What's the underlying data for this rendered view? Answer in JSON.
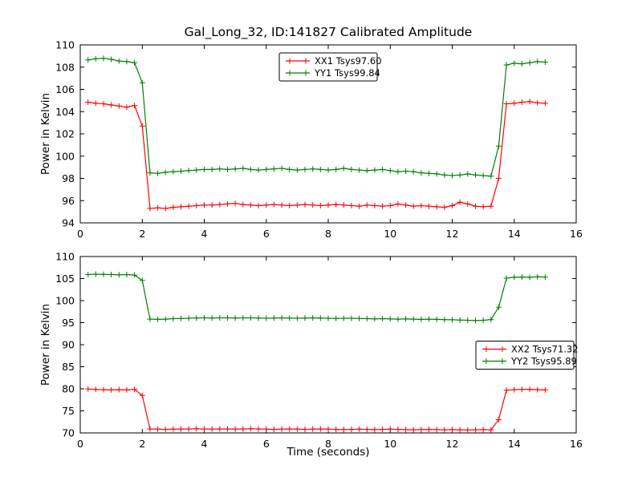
{
  "figure": {
    "title": "Gal_Long_32, ID:141827 Calibrated Amplitude",
    "background_color": "#ffffff",
    "axes_color": "#000000"
  },
  "chart_data": [
    {
      "type": "line",
      "ylabel": "Power in Kelvin",
      "xlabel": "",
      "xlim": [
        0,
        16
      ],
      "ylim": [
        94,
        110
      ],
      "xticks": [
        0,
        2,
        4,
        6,
        8,
        10,
        12,
        14,
        16
      ],
      "yticks": [
        94,
        96,
        98,
        100,
        102,
        104,
        106,
        108,
        110
      ],
      "grid": false,
      "legend_position": "top-center",
      "x": [
        0.25,
        0.5,
        0.75,
        1.0,
        1.25,
        1.5,
        1.75,
        2.0,
        2.25,
        2.5,
        2.75,
        3.0,
        3.25,
        3.5,
        3.75,
        4.0,
        4.25,
        4.5,
        4.75,
        5.0,
        5.25,
        5.5,
        5.75,
        6.0,
        6.25,
        6.5,
        6.75,
        7.0,
        7.25,
        7.5,
        7.75,
        8.0,
        8.25,
        8.5,
        8.75,
        9.0,
        9.25,
        9.5,
        9.75,
        10.0,
        10.25,
        10.5,
        10.75,
        11.0,
        11.25,
        11.5,
        11.75,
        12.0,
        12.25,
        12.5,
        12.75,
        13.0,
        13.25,
        13.5,
        13.75,
        14.0,
        14.25,
        14.5,
        14.75,
        15.0
      ],
      "series": [
        {
          "key": "XX1",
          "name": "XX1 Tsys97.60",
          "color": "#ff0000",
          "marker": "+",
          "values": [
            104.85,
            104.75,
            104.7,
            104.6,
            104.5,
            104.4,
            104.55,
            102.7,
            95.3,
            95.35,
            95.3,
            95.4,
            95.45,
            95.5,
            95.55,
            95.6,
            95.6,
            95.65,
            95.7,
            95.75,
            95.65,
            95.6,
            95.55,
            95.6,
            95.65,
            95.6,
            95.55,
            95.6,
            95.65,
            95.6,
            95.55,
            95.6,
            95.65,
            95.6,
            95.55,
            95.5,
            95.6,
            95.55,
            95.5,
            95.55,
            95.7,
            95.6,
            95.5,
            95.55,
            95.5,
            95.45,
            95.4,
            95.55,
            95.85,
            95.7,
            95.5,
            95.45,
            95.5,
            98.0,
            104.7,
            104.75,
            104.85,
            104.9,
            104.8,
            104.75
          ]
        },
        {
          "key": "YY1",
          "name": "YY1 Tsys99.84",
          "color": "#008000",
          "marker": "+",
          "values": [
            108.65,
            108.75,
            108.8,
            108.7,
            108.55,
            108.5,
            108.4,
            106.6,
            98.5,
            98.45,
            98.55,
            98.6,
            98.65,
            98.7,
            98.75,
            98.8,
            98.8,
            98.85,
            98.8,
            98.85,
            98.9,
            98.8,
            98.75,
            98.8,
            98.85,
            98.9,
            98.8,
            98.75,
            98.8,
            98.85,
            98.8,
            98.75,
            98.8,
            98.9,
            98.8,
            98.75,
            98.7,
            98.75,
            98.8,
            98.7,
            98.6,
            98.65,
            98.6,
            98.5,
            98.45,
            98.4,
            98.3,
            98.25,
            98.3,
            98.4,
            98.3,
            98.25,
            98.2,
            100.9,
            108.2,
            108.35,
            108.3,
            108.4,
            108.5,
            108.45
          ]
        }
      ]
    },
    {
      "type": "line",
      "ylabel": "Power in Kelvin",
      "xlabel": "Time (seconds)",
      "xlim": [
        0,
        16
      ],
      "ylim": [
        70,
        110
      ],
      "xticks": [
        0,
        2,
        4,
        6,
        8,
        10,
        12,
        14,
        16
      ],
      "yticks": [
        70,
        75,
        80,
        85,
        90,
        95,
        100,
        105,
        110
      ],
      "grid": false,
      "legend_position": "right-center",
      "x": [
        0.25,
        0.5,
        0.75,
        1.0,
        1.25,
        1.5,
        1.75,
        2.0,
        2.25,
        2.5,
        2.75,
        3.0,
        3.25,
        3.5,
        3.75,
        4.0,
        4.25,
        4.5,
        4.75,
        5.0,
        5.25,
        5.5,
        5.75,
        6.0,
        6.25,
        6.5,
        6.75,
        7.0,
        7.25,
        7.5,
        7.75,
        8.0,
        8.25,
        8.5,
        8.75,
        9.0,
        9.25,
        9.5,
        9.75,
        10.0,
        10.25,
        10.5,
        10.75,
        11.0,
        11.25,
        11.5,
        11.75,
        12.0,
        12.25,
        12.5,
        12.75,
        13.0,
        13.25,
        13.5,
        13.75,
        14.0,
        14.25,
        14.5,
        14.75,
        15.0
      ],
      "series": [
        {
          "key": "XX2",
          "name": "XX2 Tsys71.32",
          "color": "#ff0000",
          "marker": "+",
          "values": [
            79.95,
            79.85,
            79.8,
            79.75,
            79.8,
            79.75,
            79.85,
            78.5,
            70.9,
            70.85,
            70.8,
            70.85,
            70.9,
            70.9,
            70.95,
            70.9,
            70.85,
            70.9,
            70.9,
            70.85,
            70.9,
            70.95,
            70.9,
            70.85,
            70.8,
            70.85,
            70.9,
            70.85,
            70.8,
            70.85,
            70.9,
            70.85,
            70.8,
            70.75,
            70.8,
            70.85,
            70.8,
            70.75,
            70.8,
            70.85,
            70.8,
            70.75,
            70.7,
            70.75,
            70.8,
            70.75,
            70.7,
            70.75,
            70.7,
            70.65,
            70.7,
            70.75,
            70.7,
            73.0,
            79.7,
            79.8,
            79.85,
            79.9,
            79.8,
            79.75
          ]
        },
        {
          "key": "YY2",
          "name": "YY2 Tsys95.89",
          "color": "#008000",
          "marker": "+",
          "values": [
            105.9,
            106.0,
            105.95,
            105.9,
            105.85,
            105.9,
            105.8,
            104.6,
            95.8,
            95.75,
            95.8,
            95.9,
            95.95,
            96.0,
            96.05,
            96.1,
            96.05,
            96.1,
            96.1,
            96.05,
            96.1,
            96.1,
            96.05,
            96.0,
            96.05,
            96.1,
            96.05,
            96.0,
            96.05,
            96.1,
            96.05,
            96.0,
            95.95,
            96.0,
            96.0,
            95.95,
            95.9,
            95.85,
            95.9,
            95.85,
            95.8,
            95.85,
            95.8,
            95.75,
            95.8,
            95.75,
            95.7,
            95.65,
            95.6,
            95.55,
            95.5,
            95.55,
            95.7,
            98.5,
            105.1,
            105.3,
            105.35,
            105.3,
            105.4,
            105.35
          ]
        }
      ]
    }
  ]
}
